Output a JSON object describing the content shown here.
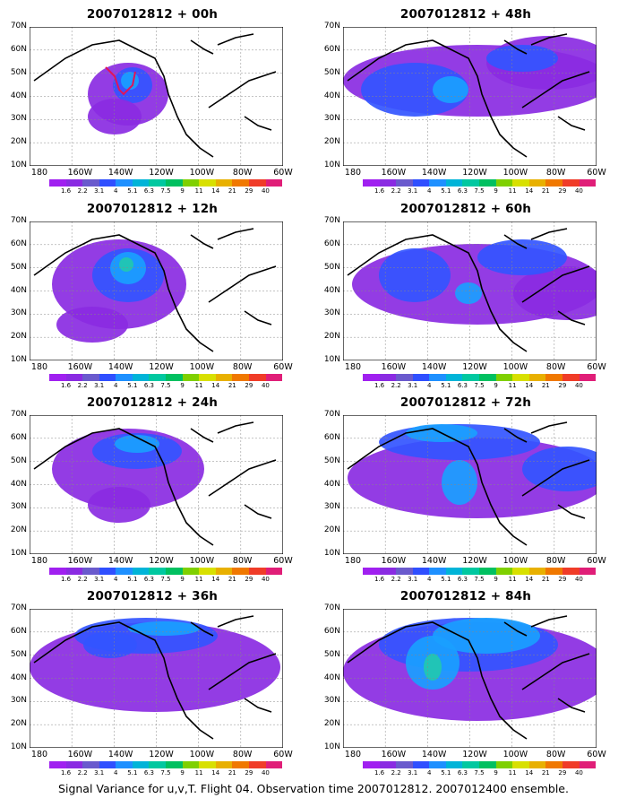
{
  "panels": [
    {
      "title": "2007012812 + 00h",
      "blobs": [
        [
          110,
          75,
          45,
          35,
          "#8a2be2"
        ],
        [
          115,
          65,
          22,
          20,
          "#3355ff"
        ],
        [
          112,
          60,
          10,
          10,
          "#1aa0ff"
        ],
        [
          95,
          100,
          30,
          20,
          "#8a2be2"
        ]
      ],
      "track": true
    },
    {
      "title": "2007012812 + 48h",
      "blobs": [
        [
          150,
          60,
          150,
          40,
          "#8a2be2"
        ],
        [
          230,
          40,
          70,
          30,
          "#8a2be2"
        ],
        [
          80,
          70,
          60,
          30,
          "#3355ff"
        ],
        [
          120,
          70,
          20,
          15,
          "#1aa0ff"
        ],
        [
          200,
          35,
          40,
          15,
          "#3355ff"
        ]
      ],
      "track": false
    },
    {
      "title": "2007012812 + 12h",
      "blobs": [
        [
          100,
          70,
          75,
          50,
          "#8a2be2"
        ],
        [
          110,
          60,
          40,
          30,
          "#3355ff"
        ],
        [
          110,
          52,
          20,
          18,
          "#1aa0ff"
        ],
        [
          108,
          48,
          8,
          8,
          "#22c8b0"
        ],
        [
          70,
          115,
          40,
          20,
          "#8a2be2"
        ]
      ],
      "track": false
    },
    {
      "title": "2007012812 + 60h",
      "blobs": [
        [
          150,
          70,
          140,
          45,
          "#8a2be2"
        ],
        [
          250,
          80,
          60,
          30,
          "#8a2be2"
        ],
        [
          80,
          60,
          40,
          30,
          "#3355ff"
        ],
        [
          200,
          40,
          50,
          20,
          "#3355ff"
        ],
        [
          140,
          80,
          15,
          12,
          "#1aa0ff"
        ]
      ],
      "track": false
    },
    {
      "title": "2007012812 + 24h",
      "blobs": [
        [
          110,
          60,
          85,
          45,
          "#8a2be2"
        ],
        [
          120,
          40,
          50,
          20,
          "#3355ff"
        ],
        [
          120,
          32,
          25,
          10,
          "#1aa0ff"
        ],
        [
          100,
          100,
          35,
          20,
          "#8a2be2"
        ]
      ],
      "track": false
    },
    {
      "title": "2007012812 + 72h",
      "blobs": [
        [
          150,
          70,
          145,
          45,
          "#8a2be2"
        ],
        [
          130,
          30,
          90,
          20,
          "#3355ff"
        ],
        [
          110,
          20,
          40,
          10,
          "#1aa0ff"
        ],
        [
          130,
          75,
          20,
          25,
          "#1aa0ff"
        ],
        [
          250,
          60,
          50,
          25,
          "#3355ff"
        ]
      ],
      "track": false
    },
    {
      "title": "2007012812 + 36h",
      "blobs": [
        [
          140,
          65,
          140,
          50,
          "#8a2be2"
        ],
        [
          130,
          30,
          80,
          20,
          "#3355ff"
        ],
        [
          150,
          22,
          40,
          8,
          "#1aa0ff"
        ],
        [
          90,
          40,
          30,
          15,
          "#3355ff"
        ]
      ],
      "track": false
    },
    {
      "title": "2007012812 + 84h",
      "blobs": [
        [
          150,
          70,
          150,
          55,
          "#8a2be2"
        ],
        [
          140,
          40,
          100,
          30,
          "#3355ff"
        ],
        [
          100,
          60,
          30,
          30,
          "#1aa0ff"
        ],
        [
          100,
          65,
          10,
          15,
          "#22c8b0"
        ],
        [
          160,
          30,
          60,
          20,
          "#1aa0ff"
        ]
      ],
      "track": false
    }
  ],
  "map_land_fill": "#ffffff",
  "colorbar": {
    "colors": [
      "#a020f0",
      "#8a2be2",
      "#6a5acd",
      "#2f4fff",
      "#1e90ff",
      "#00b4d8",
      "#00c8a0",
      "#00c060",
      "#7fd000",
      "#d8e000",
      "#e8b000",
      "#f07800",
      "#f03c28",
      "#e01e78"
    ],
    "labels": [
      "1.6",
      "2.2",
      "3.1",
      "4",
      "5.1",
      "6.3",
      "7.5",
      "9",
      "11",
      "14",
      "21",
      "29",
      "40"
    ]
  },
  "axes": {
    "lat_labels": [
      "70N",
      "60N",
      "50N",
      "40N",
      "30N",
      "20N",
      "10N"
    ],
    "lon_labels": [
      "180",
      "160W",
      "140W",
      "120W",
      "100W",
      "80W",
      "60W"
    ]
  },
  "footer": "Signal Variance for u,v,T. Flight 04. Observation time 2007012812. 2007012400 ensemble."
}
